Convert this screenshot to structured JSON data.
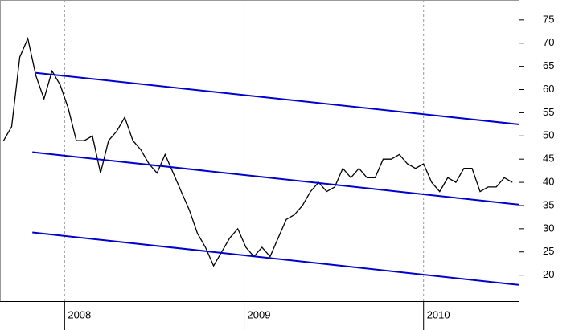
{
  "chart_data": {
    "type": "line",
    "series": [
      {
        "color": "#000000",
        "x": [
          2007.66,
          2007.705,
          2007.75,
          2007.795,
          2007.84,
          2007.885,
          2007.93,
          2007.975,
          2008.02,
          2008.065,
          2008.11,
          2008.155,
          2008.2,
          2008.245,
          2008.29,
          2008.335,
          2008.38,
          2008.425,
          2008.47,
          2008.515,
          2008.56,
          2008.605,
          2008.65,
          2008.695,
          2008.74,
          2008.785,
          2008.83,
          2008.875,
          2008.92,
          2008.965,
          2009.01,
          2009.055,
          2009.1,
          2009.145,
          2009.19,
          2009.235,
          2009.28,
          2009.325,
          2009.37,
          2009.415,
          2009.46,
          2009.505,
          2009.55,
          2009.595,
          2009.64,
          2009.685,
          2009.73,
          2009.775,
          2009.82,
          2009.865,
          2009.91,
          2009.955,
          2010.0,
          2010.045,
          2010.09,
          2010.135,
          2010.18,
          2010.225,
          2010.27,
          2010.315,
          2010.36,
          2010.405,
          2010.45,
          2010.495
        ],
        "values": [
          49,
          52,
          67,
          71,
          63,
          58,
          64,
          61,
          56,
          49,
          49,
          50,
          42,
          49,
          51,
          54,
          49,
          47,
          44,
          42,
          46,
          42,
          38,
          34,
          29,
          26,
          22,
          25,
          28,
          30,
          26,
          24,
          26,
          24,
          28,
          32,
          33,
          35,
          38,
          40,
          38,
          39,
          43,
          41,
          43,
          41,
          41,
          45,
          45,
          46,
          44,
          43,
          44,
          40,
          38,
          41,
          40,
          43,
          43,
          38,
          39,
          39,
          41,
          40
        ]
      },
      {
        "color": "#0000cc",
        "x": [
          2007.84,
          2010.53
        ],
        "values": [
          63.6,
          52.5
        ]
      },
      {
        "color": "#0000cc",
        "x": [
          2007.82,
          2010.53
        ],
        "values": [
          46.5,
          35.2
        ]
      },
      {
        "color": "#0000cc",
        "x": [
          2007.82,
          2010.53
        ],
        "values": [
          29.2,
          17.9
        ]
      }
    ],
    "xlim": [
      2007.64,
      2010.53
    ],
    "xticks": [
      2008,
      2009,
      2010
    ],
    "ylim": [
      14.4,
      79.3
    ],
    "yticks": [
      20,
      25,
      30,
      35,
      40,
      45,
      50,
      55,
      60,
      65,
      70,
      75
    ],
    "grid": true
  }
}
